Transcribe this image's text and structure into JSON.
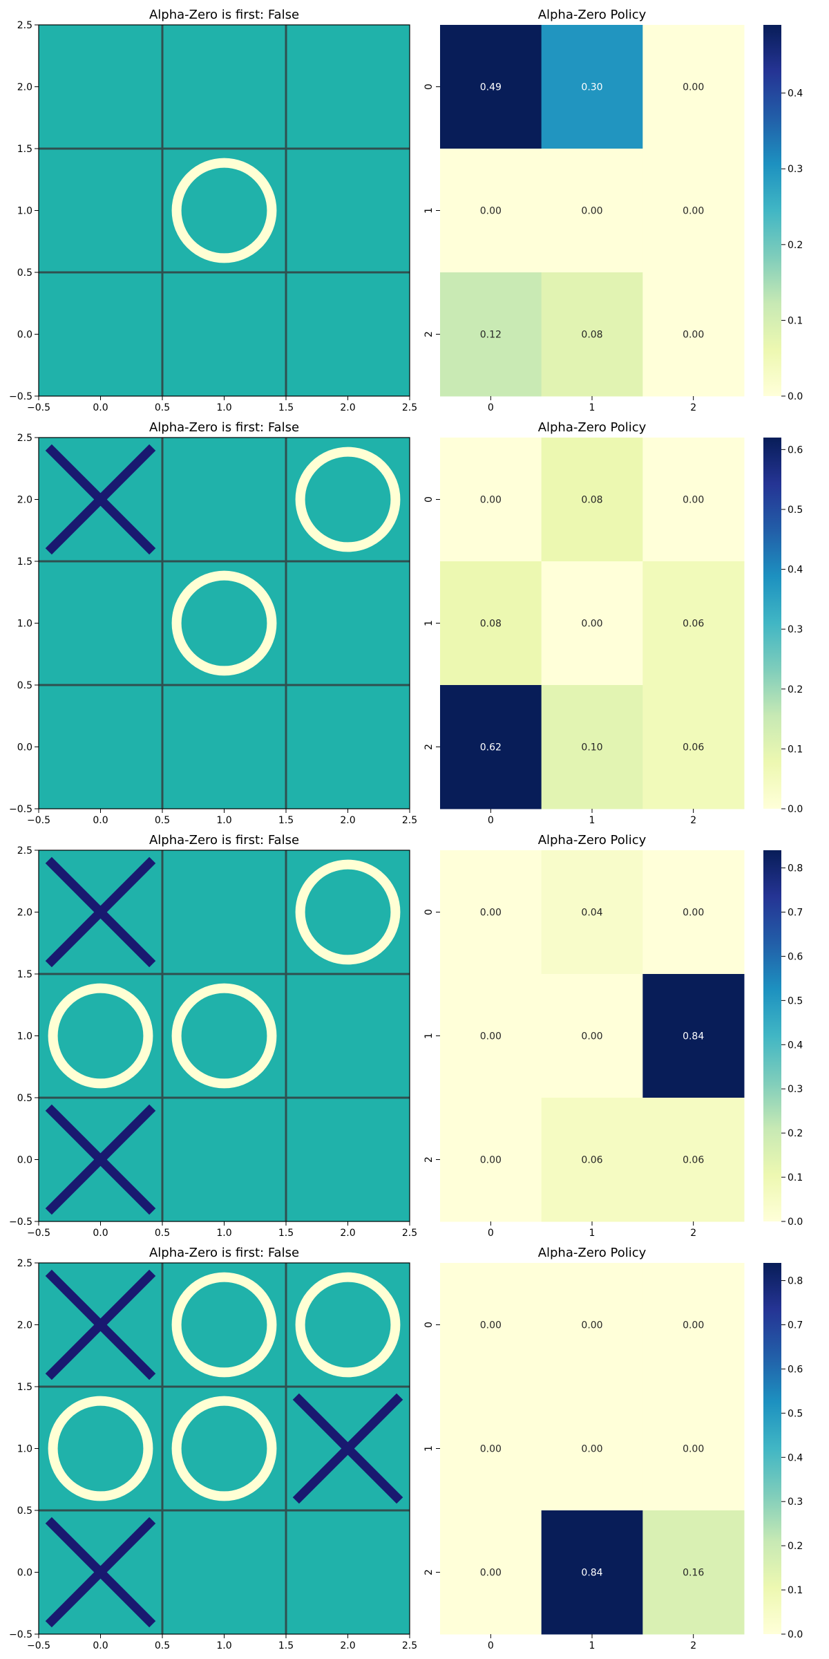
{
  "colors": {
    "board_bg": "#20B2AA",
    "grid_line": "#2F4F4F",
    "x_mark": "#191970",
    "o_mark": "#FFFFD4",
    "cmap": [
      "#ffffd9",
      "#edf8b1",
      "#c7e9b4",
      "#7fcdbb",
      "#41b6c4",
      "#1d91c0",
      "#225ea8",
      "#253494",
      "#081d58"
    ]
  },
  "chart_data": [
    {
      "type": "scatter",
      "title": "Alpha-Zero is first: False",
      "xlim": [
        -0.5,
        2.5
      ],
      "ylim": [
        -0.5,
        2.5
      ],
      "x_ticks": [
        "−0.5",
        "0.0",
        "0.5",
        "1.0",
        "1.5",
        "2.0",
        "2.5"
      ],
      "y_ticks": [
        "−0.5",
        "0.0",
        "0.5",
        "1.0",
        "1.5",
        "2.0",
        "2.5"
      ],
      "grid_lines": [
        0.5,
        1.5
      ],
      "marks": [
        {
          "type": "O",
          "x": 1,
          "y": 1
        }
      ]
    },
    {
      "type": "heatmap",
      "title": "Alpha-Zero Policy",
      "x_categories": [
        "0",
        "1",
        "2"
      ],
      "y_categories": [
        "0",
        "1",
        "2"
      ],
      "values": [
        [
          0.49,
          0.3,
          0.0
        ],
        [
          0.0,
          0.0,
          0.0
        ],
        [
          0.12,
          0.08,
          0.0
        ]
      ],
      "labels": [
        [
          "0.49",
          "0.30",
          "0.00"
        ],
        [
          "0.00",
          "0.00",
          "0.00"
        ],
        [
          "0.12",
          "0.08",
          "0.00"
        ]
      ],
      "vmin": 0,
      "vmax": 0.49,
      "colorbar_ticks": [
        {
          "value": 0.0,
          "label": "0.0"
        },
        {
          "value": 0.1,
          "label": "0.1"
        },
        {
          "value": 0.2,
          "label": "0.2"
        },
        {
          "value": 0.3,
          "label": "0.3"
        },
        {
          "value": 0.4,
          "label": "0.4"
        }
      ]
    },
    {
      "type": "scatter",
      "title": "Alpha-Zero is first: False",
      "xlim": [
        -0.5,
        2.5
      ],
      "ylim": [
        -0.5,
        2.5
      ],
      "x_ticks": [
        "−0.5",
        "0.0",
        "0.5",
        "1.0",
        "1.5",
        "2.0",
        "2.5"
      ],
      "y_ticks": [
        "−0.5",
        "0.0",
        "0.5",
        "1.0",
        "1.5",
        "2.0",
        "2.5"
      ],
      "grid_lines": [
        0.5,
        1.5
      ],
      "marks": [
        {
          "type": "X",
          "x": 0,
          "y": 2
        },
        {
          "type": "O",
          "x": 2,
          "y": 2
        },
        {
          "type": "O",
          "x": 1,
          "y": 1
        }
      ]
    },
    {
      "type": "heatmap",
      "title": "Alpha-Zero Policy",
      "x_categories": [
        "0",
        "1",
        "2"
      ],
      "y_categories": [
        "0",
        "1",
        "2"
      ],
      "values": [
        [
          0.0,
          0.08,
          0.0
        ],
        [
          0.08,
          0.0,
          0.06
        ],
        [
          0.62,
          0.1,
          0.06
        ]
      ],
      "labels": [
        [
          "0.00",
          "0.08",
          "0.00"
        ],
        [
          "0.08",
          "0.00",
          "0.06"
        ],
        [
          "0.62",
          "0.10",
          "0.06"
        ]
      ],
      "vmin": 0,
      "vmax": 0.62,
      "colorbar_ticks": [
        {
          "value": 0.0,
          "label": "0.0"
        },
        {
          "value": 0.1,
          "label": "0.1"
        },
        {
          "value": 0.2,
          "label": "0.2"
        },
        {
          "value": 0.3,
          "label": "0.3"
        },
        {
          "value": 0.4,
          "label": "0.4"
        },
        {
          "value": 0.5,
          "label": "0.5"
        },
        {
          "value": 0.6,
          "label": "0.6"
        }
      ]
    },
    {
      "type": "scatter",
      "title": "Alpha-Zero is first: False",
      "xlim": [
        -0.5,
        2.5
      ],
      "ylim": [
        -0.5,
        2.5
      ],
      "x_ticks": [
        "−0.5",
        "0.0",
        "0.5",
        "1.0",
        "1.5",
        "2.0",
        "2.5"
      ],
      "y_ticks": [
        "−0.5",
        "0.0",
        "0.5",
        "1.0",
        "1.5",
        "2.0",
        "2.5"
      ],
      "grid_lines": [
        0.5,
        1.5
      ],
      "marks": [
        {
          "type": "X",
          "x": 0,
          "y": 2
        },
        {
          "type": "O",
          "x": 2,
          "y": 2
        },
        {
          "type": "O",
          "x": 0,
          "y": 1
        },
        {
          "type": "O",
          "x": 1,
          "y": 1
        },
        {
          "type": "X",
          "x": 0,
          "y": 0
        }
      ]
    },
    {
      "type": "heatmap",
      "title": "Alpha-Zero Policy",
      "x_categories": [
        "0",
        "1",
        "2"
      ],
      "y_categories": [
        "0",
        "1",
        "2"
      ],
      "values": [
        [
          0.0,
          0.04,
          0.0
        ],
        [
          0.0,
          0.0,
          0.84
        ],
        [
          0.0,
          0.06,
          0.06
        ]
      ],
      "labels": [
        [
          "0.00",
          "0.04",
          "0.00"
        ],
        [
          "0.00",
          "0.00",
          "0.84"
        ],
        [
          "0.00",
          "0.06",
          "0.06"
        ]
      ],
      "vmin": 0,
      "vmax": 0.84,
      "colorbar_ticks": [
        {
          "value": 0.0,
          "label": "0.0"
        },
        {
          "value": 0.1,
          "label": "0.1"
        },
        {
          "value": 0.2,
          "label": "0.2"
        },
        {
          "value": 0.3,
          "label": "0.3"
        },
        {
          "value": 0.4,
          "label": "0.4"
        },
        {
          "value": 0.5,
          "label": "0.5"
        },
        {
          "value": 0.6,
          "label": "0.6"
        },
        {
          "value": 0.7,
          "label": "0.7"
        },
        {
          "value": 0.8,
          "label": "0.8"
        }
      ]
    },
    {
      "type": "scatter",
      "title": "Alpha-Zero is first: False",
      "xlim": [
        -0.5,
        2.5
      ],
      "ylim": [
        -0.5,
        2.5
      ],
      "x_ticks": [
        "−0.5",
        "0.0",
        "0.5",
        "1.0",
        "1.5",
        "2.0",
        "2.5"
      ],
      "y_ticks": [
        "−0.5",
        "0.0",
        "0.5",
        "1.0",
        "1.5",
        "2.0",
        "2.5"
      ],
      "grid_lines": [
        0.5,
        1.5
      ],
      "marks": [
        {
          "type": "X",
          "x": 0,
          "y": 2
        },
        {
          "type": "O",
          "x": 1,
          "y": 2
        },
        {
          "type": "O",
          "x": 2,
          "y": 2
        },
        {
          "type": "O",
          "x": 0,
          "y": 1
        },
        {
          "type": "O",
          "x": 1,
          "y": 1
        },
        {
          "type": "X",
          "x": 2,
          "y": 1
        },
        {
          "type": "X",
          "x": 0,
          "y": 0
        }
      ]
    },
    {
      "type": "heatmap",
      "title": "Alpha-Zero Policy",
      "x_categories": [
        "0",
        "1",
        "2"
      ],
      "y_categories": [
        "0",
        "1",
        "2"
      ],
      "values": [
        [
          0.0,
          0.0,
          0.0
        ],
        [
          0.0,
          0.0,
          0.0
        ],
        [
          0.0,
          0.84,
          0.16
        ]
      ],
      "labels": [
        [
          "0.00",
          "0.00",
          "0.00"
        ],
        [
          "0.00",
          "0.00",
          "0.00"
        ],
        [
          "0.00",
          "0.84",
          "0.16"
        ]
      ],
      "vmin": 0,
      "vmax": 0.84,
      "colorbar_ticks": [
        {
          "value": 0.0,
          "label": "0.0"
        },
        {
          "value": 0.1,
          "label": "0.1"
        },
        {
          "value": 0.2,
          "label": "0.2"
        },
        {
          "value": 0.3,
          "label": "0.3"
        },
        {
          "value": 0.4,
          "label": "0.4"
        },
        {
          "value": 0.5,
          "label": "0.5"
        },
        {
          "value": 0.6,
          "label": "0.6"
        },
        {
          "value": 0.7,
          "label": "0.7"
        },
        {
          "value": 0.8,
          "label": "0.8"
        }
      ]
    }
  ]
}
